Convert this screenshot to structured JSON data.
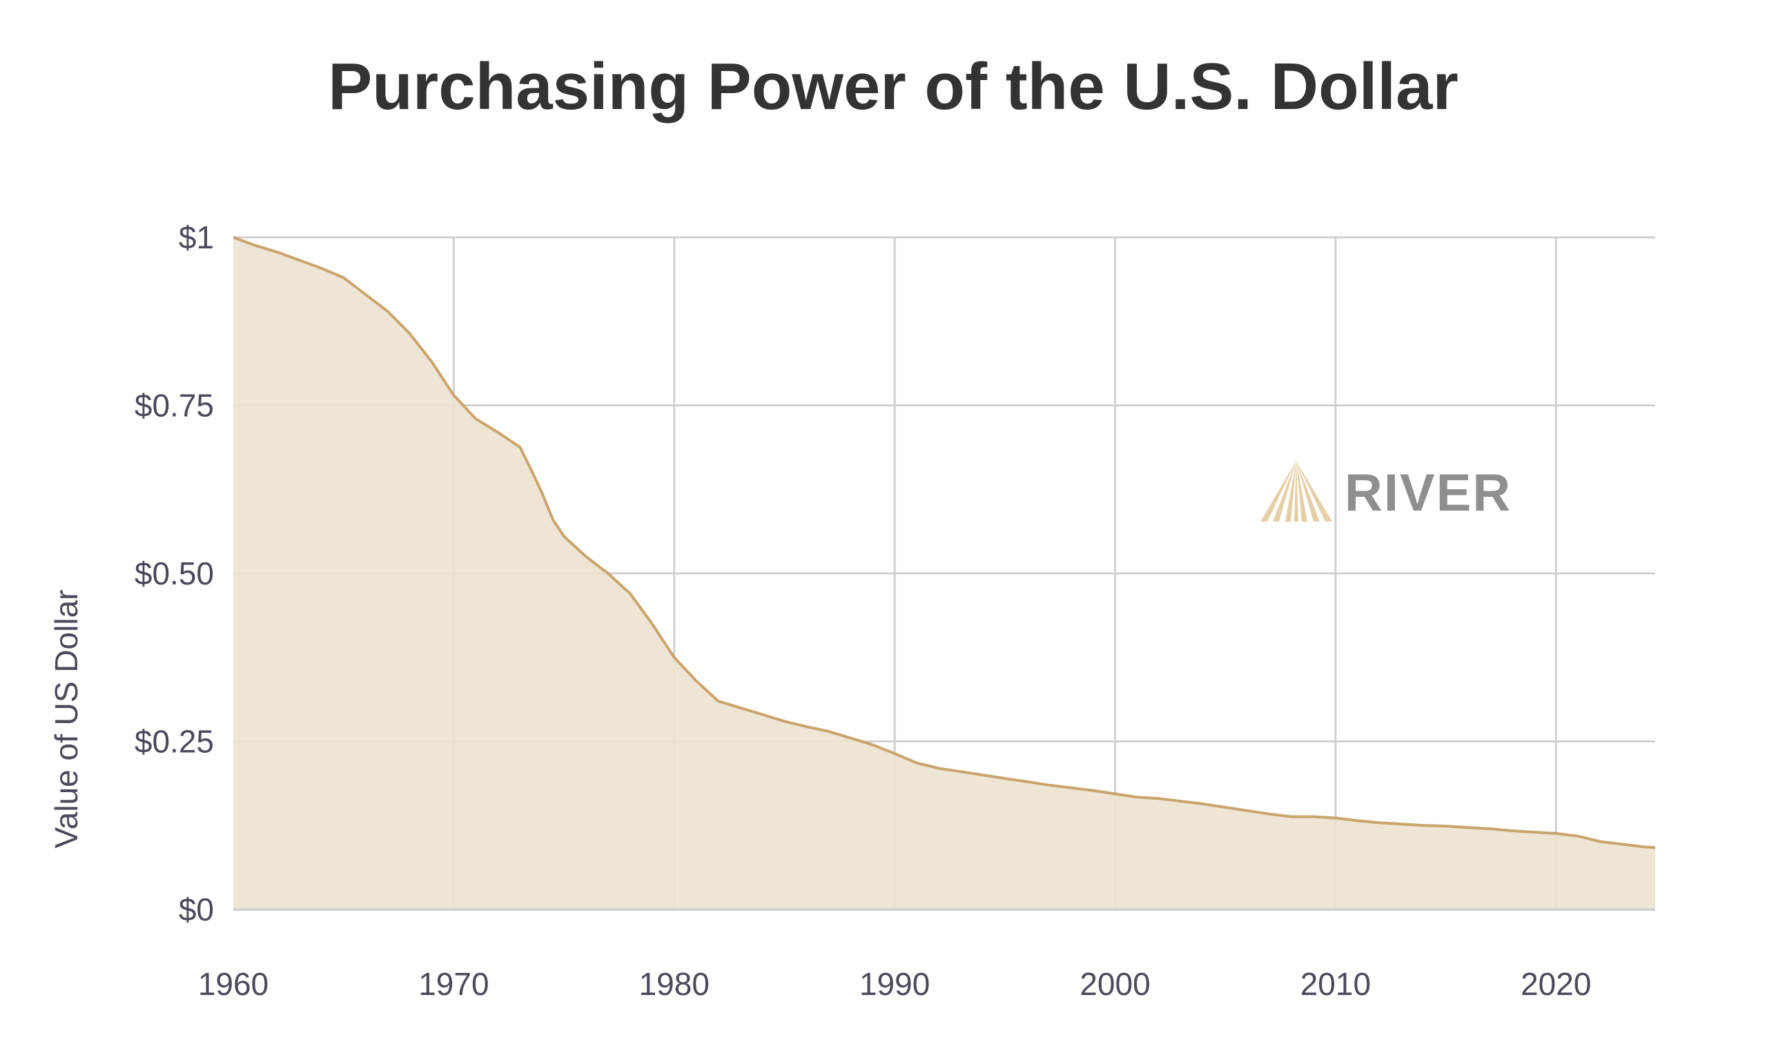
{
  "colors": {
    "background": "#ffffff",
    "grid": "#d0d0d0",
    "line": "#c9a46c",
    "area_fill": "#ede2cf",
    "title": "#333333",
    "tick_text": "#4a4a5a",
    "brand_text": "#8f8f8f",
    "brand_logo": "#e6cfa6"
  },
  "brand": {
    "name": "RIVER",
    "logo_icon": "river-fan-logo-icon"
  },
  "chart_data": {
    "type": "area",
    "title": "Purchasing Power of the U.S. Dollar",
    "xlabel": "",
    "ylabel": "Value of US Dollar",
    "xlim": [
      1960,
      2024.5
    ],
    "ylim": [
      0,
      1
    ],
    "grid": true,
    "legend": "none",
    "x_ticks": [
      {
        "value": 1960,
        "label": "1960"
      },
      {
        "value": 1970,
        "label": "1970"
      },
      {
        "value": 1980,
        "label": "1980"
      },
      {
        "value": 1990,
        "label": "1990"
      },
      {
        "value": 2000,
        "label": "2000"
      },
      {
        "value": 2010,
        "label": "2010"
      },
      {
        "value": 2020,
        "label": "2020"
      }
    ],
    "y_ticks": [
      {
        "value": 0,
        "label": "$0"
      },
      {
        "value": 0.25,
        "label": "$0.25"
      },
      {
        "value": 0.5,
        "label": "$0.50"
      },
      {
        "value": 0.75,
        "label": "$0.75"
      },
      {
        "value": 1,
        "label": "$1"
      }
    ],
    "x": [
      1960,
      1961,
      1962,
      1963,
      1964,
      1965,
      1966,
      1967,
      1968,
      1969,
      1970,
      1971,
      1972,
      1973,
      1973.5,
      1974,
      1974.5,
      1975,
      1976,
      1977,
      1978,
      1979,
      1980,
      1981,
      1982,
      1983,
      1984,
      1985,
      1986,
      1987,
      1988,
      1989,
      1990,
      1991,
      1992,
      1993,
      1994,
      1995,
      1996,
      1997,
      1998,
      1999,
      2000,
      2001,
      2002,
      2003,
      2004,
      2005,
      2006,
      2007,
      2008,
      2009,
      2010,
      2011,
      2012,
      2013,
      2014,
      2015,
      2016,
      2017,
      2018,
      2019,
      2020,
      2021,
      2022,
      2023,
      2024,
      2024.5
    ],
    "series": [
      {
        "values": [
          1.0,
          0.988,
          0.978,
          0.966,
          0.954,
          0.94,
          0.915,
          0.89,
          0.857,
          0.815,
          0.765,
          0.73,
          0.71,
          0.688,
          0.655,
          0.62,
          0.58,
          0.555,
          0.525,
          0.5,
          0.47,
          0.425,
          0.375,
          0.34,
          0.31,
          0.3,
          0.29,
          0.28,
          0.272,
          0.265,
          0.255,
          0.245,
          0.232,
          0.218,
          0.21,
          0.205,
          0.2,
          0.195,
          0.19,
          0.185,
          0.181,
          0.177,
          0.172,
          0.167,
          0.165,
          0.161,
          0.157,
          0.152,
          0.147,
          0.142,
          0.138,
          0.138,
          0.136,
          0.132,
          0.129,
          0.127,
          0.125,
          0.124,
          0.122,
          0.12,
          0.117,
          0.115,
          0.113,
          0.109,
          0.101,
          0.097,
          0.093,
          0.092
        ]
      }
    ]
  }
}
